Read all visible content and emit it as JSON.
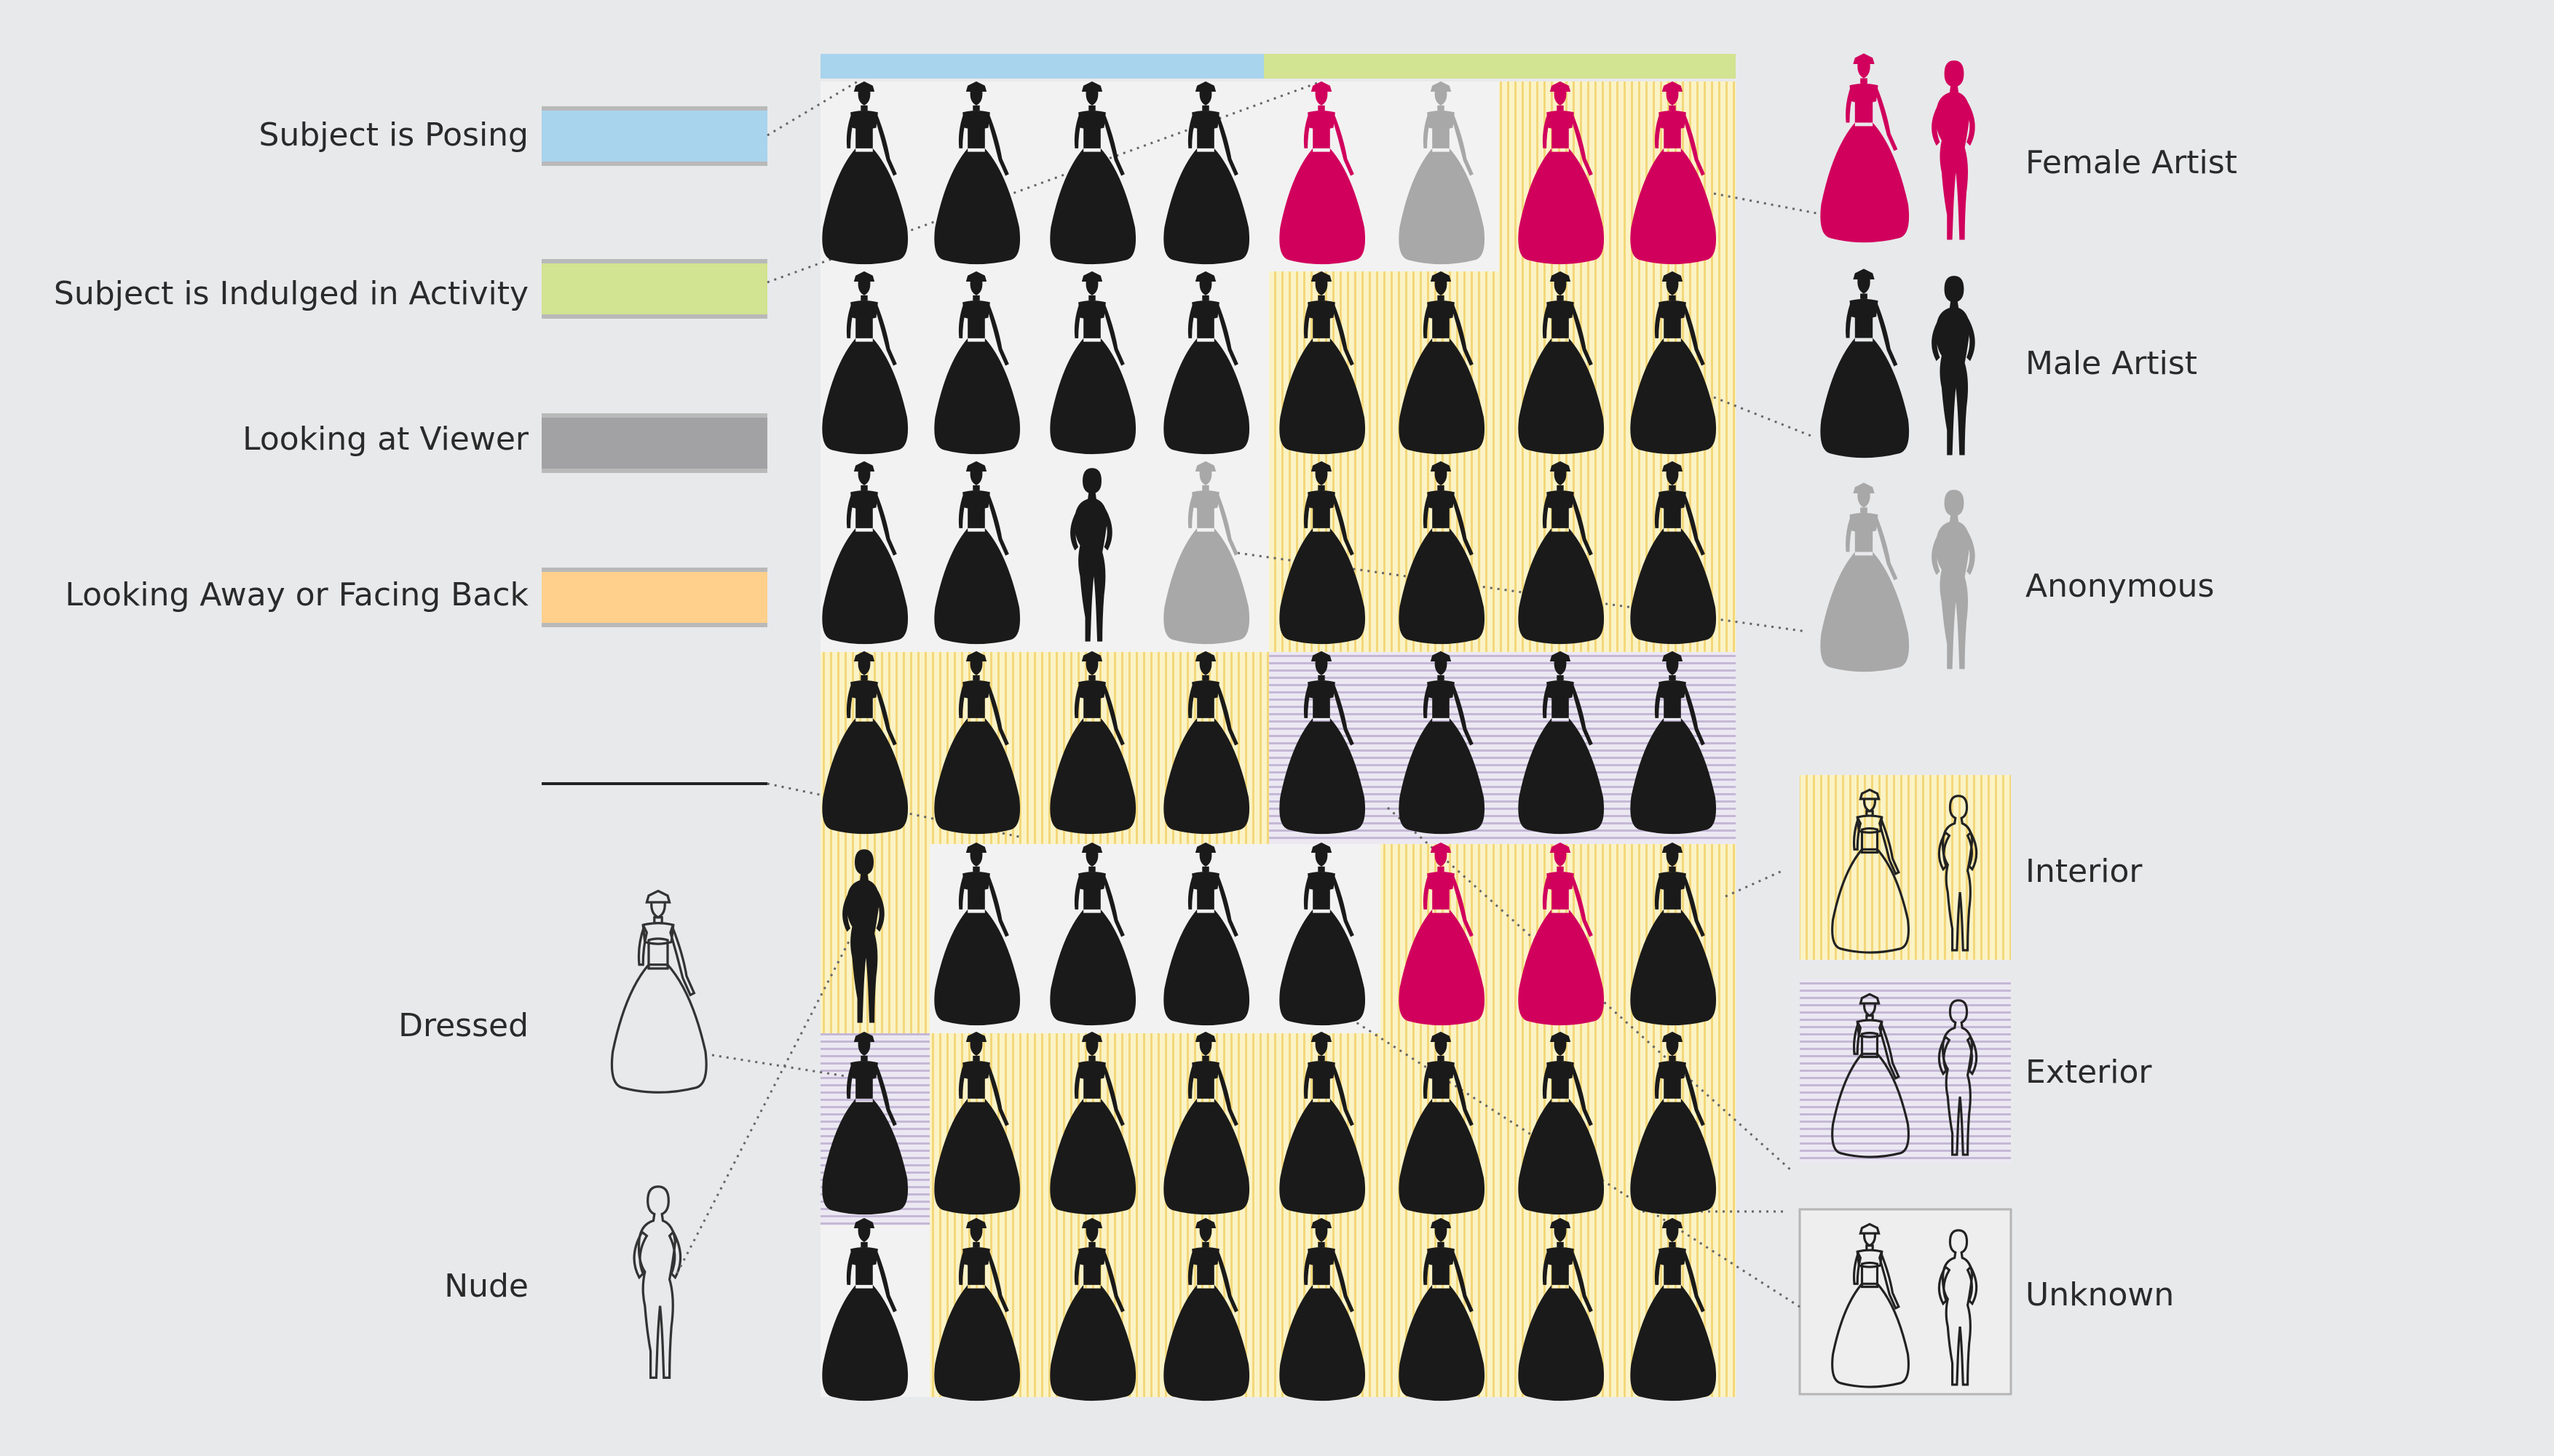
{
  "legend_left": {
    "items": [
      {
        "label": "Subject is Posing",
        "color": "#a9d4ee"
      },
      {
        "label": "Subject is Indulged in Activity",
        "color": "#d2e391"
      },
      {
        "label": "Looking at Viewer",
        "color": "#a2a2a4"
      },
      {
        "label": "Looking Away or Facing Back",
        "color": "#ffcf8c"
      }
    ],
    "divider_label": "",
    "dressed_label": "Dressed",
    "nude_label": "Nude"
  },
  "legend_right": {
    "artist": [
      {
        "label": "Female Artist",
        "color": "#d1005d"
      },
      {
        "label": "Male Artist",
        "color": "#1a1a1a"
      },
      {
        "label": "Anonymous",
        "color": "#a8a8a8"
      }
    ],
    "setting": [
      {
        "label": "Interior",
        "pattern": "interior"
      },
      {
        "label": "Exterior",
        "pattern": "exterior"
      },
      {
        "label": "Unknown",
        "pattern": "unknown"
      }
    ]
  },
  "header_bars": {
    "posing_color": "#a9d4ee",
    "activity_color": "#d2e391"
  },
  "colors": {
    "female": "#d1005d",
    "male": "#1a1a1a",
    "anonymous": "#a8a8a8",
    "interior_bg": "#fbf3c6",
    "interior_line": "#f3d77a",
    "exterior_bg": "#ece8f2",
    "exterior_line": "#c4b8d6",
    "unknown_bg": "#f2f2f2"
  },
  "grid": {
    "rows": [
      [
        "D.m.U",
        "D.m.U",
        "D.m.U",
        "D.m.U",
        "D.f.U",
        "D.a.U",
        "D.f.I",
        "D.f.I"
      ],
      [
        "D.m.U",
        "D.m.U",
        "D.m.U",
        "D.m.U",
        "D.m.I",
        "D.m.I",
        "D.m.I",
        "D.m.I"
      ],
      [
        "D.m.U",
        "D.m.U",
        "N.m.U",
        "D.a.U",
        "D.m.I",
        "D.m.I",
        "D.m.I",
        "D.m.I"
      ],
      [
        "D.m.I",
        "D.m.I",
        "D.m.I",
        "D.m.I",
        "D.m.E",
        "D.m.E",
        "D.m.E",
        "D.m.E"
      ],
      [
        "N.m.I",
        "D.m.U",
        "D.m.U",
        "D.m.U",
        "D.m.U",
        "D.f.I",
        "D.f.I",
        "D.m.I"
      ],
      [
        "D.m.E",
        "D.m.I",
        "D.m.I",
        "D.m.I",
        "D.m.I",
        "D.m.I",
        "D.m.I",
        "D.m.I"
      ],
      [
        "D.m.U",
        "D.m.I",
        "D.m.I",
        "D.m.I",
        "D.m.I",
        "D.m.I",
        "D.m.I",
        "D.m.I"
      ]
    ]
  }
}
